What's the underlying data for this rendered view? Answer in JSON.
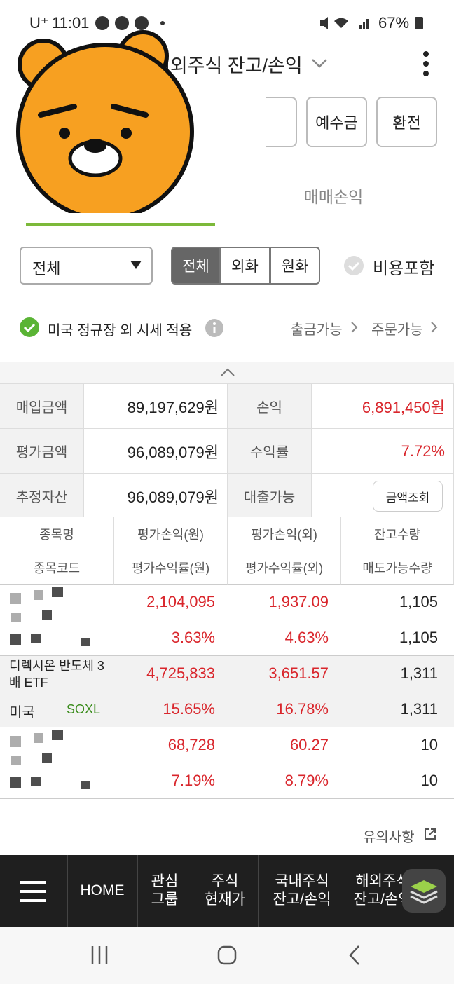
{
  "status_bar": {
    "time": "11:01",
    "carrier": "U⁺",
    "battery": "67%"
  },
  "header": {
    "title": "해외주식 잔고/손익",
    "buttons": [
      "예수금",
      "환전"
    ]
  },
  "tabs": [
    "매매손익"
  ],
  "filters": {
    "dropdown": "전체",
    "segments": [
      "전체",
      "외화",
      "원화"
    ],
    "checkbox": "비용포함"
  },
  "notice": {
    "text": "미국 정규장 외 시세 적용",
    "links": [
      "출금가능",
      "주문가능"
    ]
  },
  "summary": {
    "rows": [
      [
        "매입금액",
        "89,197,629원",
        "손익",
        "6,891,450원"
      ],
      [
        "평가금액",
        "96,089,079원",
        "수익률",
        "7.72%"
      ],
      [
        "추정자산",
        "96,089,079원",
        "대출가능",
        "금액조회"
      ]
    ]
  },
  "holdings": {
    "header": [
      [
        "종목명",
        "평가손익(원)",
        "평가손익(외)",
        "잔고수량"
      ],
      [
        "종목코드",
        "평가수익률(원)",
        "평가수익률(외)",
        "매도가능수량"
      ]
    ],
    "rows": [
      {
        "name": "",
        "market": "",
        "code": "",
        "cells": [
          [
            "2,104,095",
            "1,937.09",
            "1,105"
          ],
          [
            "3.63%",
            "4.63%",
            "1,105"
          ]
        ]
      },
      {
        "name": "디렉시온 반도체 3배 ETF",
        "market": "미국",
        "code": "SOXL",
        "cells": [
          [
            "4,725,833",
            "3,651.57",
            "1,311"
          ],
          [
            "15.65%",
            "16.78%",
            "1,311"
          ]
        ]
      },
      {
        "name": "",
        "market": "",
        "code": "",
        "cells": [
          [
            "68,728",
            "60.27",
            "10"
          ],
          [
            "7.19%",
            "8.79%",
            "10"
          ]
        ]
      }
    ]
  },
  "footer_link": "유의사항",
  "bottom_nav": [
    "HOME",
    "관심\n그룹",
    "주식\n현재가",
    "국내주식\n잔고/손익",
    "해외주식\n잔고/손익"
  ]
}
